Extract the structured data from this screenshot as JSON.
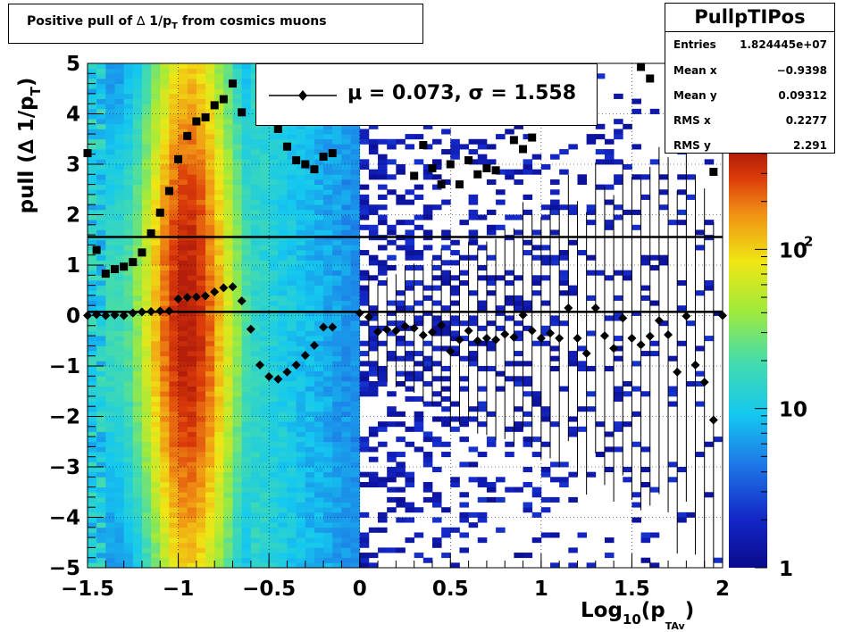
{
  "title_box": {
    "prefix": "Positive pull of ",
    "delta": "∆",
    " middle": "",
    "mid": " 1/p",
    "sub": "T",
    "suffix": " from cosmics muons"
  },
  "stats": {
    "name": "PullpTIPos",
    "rows": [
      {
        "label": "Entries",
        "value": "1.824445e+07"
      },
      {
        "label": "Mean x",
        "value": "−0.9398"
      },
      {
        "label": "Mean y",
        "value": "0.09312"
      },
      {
        "label": "RMS x",
        "value": "0.2277"
      },
      {
        "label": "RMS y",
        "value": "2.291"
      }
    ]
  },
  "legend": {
    "mu_label": "μ =  0.073, σ =   1.558"
  },
  "axes": {
    "ylabel_main": "pull (∆ 1/p",
    "ylabel_sub": "T",
    "ylabel_end": ")",
    "xlabel_main": "Log",
    "xlabel_sub1": "10",
    "xlabel_mid": "(p",
    "xlabel_sub2": "TAv",
    "xlabel_end": ")"
  },
  "chart_data": {
    "type": "heatmap",
    "xlim": [
      -1.5,
      2
    ],
    "ylim": [
      -5,
      5
    ],
    "x_ticks": [
      -1.5,
      -1,
      -0.5,
      0,
      0.5,
      1,
      1.5,
      2
    ],
    "x_tick_labels": [
      "−1.5",
      "−1",
      "−0.5",
      "0",
      "0.5",
      "1",
      "1.5",
      "2"
    ],
    "y_ticks": [
      -5,
      -4,
      -3,
      -2,
      -1,
      0,
      1,
      2,
      3,
      4,
      5
    ],
    "y_tick_labels": [
      "−5",
      "−4",
      "−3",
      "−2",
      "−1",
      "0",
      "1",
      "2",
      "3",
      "4",
      "5"
    ],
    "grid": true,
    "z_scale": "log",
    "z_range": [
      1,
      400
    ],
    "z_ticks": [
      1,
      10,
      100
    ],
    "z_tick_labels": [
      "1",
      "10",
      "10^2"
    ],
    "hlines": [
      1.558,
      0.073
    ],
    "series": [
      {
        "name": "mean",
        "marker": "diamond",
        "points": [
          [
            -1.5,
            0.0
          ],
          [
            -1.45,
            0.02
          ],
          [
            -1.4,
            0.0
          ],
          [
            -1.35,
            0.01
          ],
          [
            -1.3,
            0.0
          ],
          [
            -1.25,
            0.05
          ],
          [
            -1.2,
            0.07
          ],
          [
            -1.15,
            0.08
          ],
          [
            -1.1,
            0.09
          ],
          [
            -1.05,
            0.09
          ],
          [
            -1.0,
            0.33
          ],
          [
            -0.95,
            0.36
          ],
          [
            -0.9,
            0.37
          ],
          [
            -0.85,
            0.39
          ],
          [
            -0.8,
            0.47
          ],
          [
            -0.75,
            0.55
          ],
          [
            -0.7,
            0.57
          ],
          [
            -0.65,
            0.29
          ],
          [
            -0.6,
            -0.27
          ],
          [
            -0.55,
            -0.98
          ],
          [
            -0.5,
            -1.21
          ],
          [
            -0.45,
            -1.26
          ],
          [
            -0.4,
            -1.12
          ],
          [
            -0.35,
            -0.98
          ],
          [
            -0.3,
            -0.79
          ],
          [
            -0.25,
            -0.59
          ],
          [
            -0.2,
            -0.23
          ],
          [
            -0.15,
            -0.23
          ],
          [
            0.0,
            0.05
          ],
          [
            0.05,
            -0.03
          ],
          [
            0.1,
            -0.32
          ],
          [
            0.15,
            -0.28
          ],
          [
            0.2,
            -0.3
          ],
          [
            0.25,
            -0.21
          ],
          [
            0.3,
            -0.25
          ],
          [
            0.35,
            -0.39
          ],
          [
            0.4,
            -0.33
          ],
          [
            0.45,
            -0.19
          ],
          [
            0.5,
            -0.71
          ],
          [
            0.55,
            -0.48
          ],
          [
            0.6,
            -0.3
          ],
          [
            0.65,
            -0.5
          ],
          [
            0.7,
            -0.45
          ],
          [
            0.75,
            -0.48
          ],
          [
            0.8,
            -0.37
          ],
          [
            0.85,
            -0.43
          ],
          [
            0.9,
            0.01
          ],
          [
            0.95,
            -0.3
          ],
          [
            1.0,
            -0.45
          ],
          [
            1.05,
            -0.35
          ],
          [
            1.1,
            -0.45
          ],
          [
            1.15,
            0.15
          ],
          [
            1.2,
            -0.45
          ],
          [
            1.25,
            -0.75
          ],
          [
            1.3,
            0.15
          ],
          [
            1.35,
            -0.4
          ],
          [
            1.4,
            -0.65
          ],
          [
            1.45,
            -0.05
          ],
          [
            1.5,
            -0.45
          ],
          [
            1.55,
            -0.58
          ],
          [
            1.6,
            -0.41
          ],
          [
            1.65,
            -0.1
          ],
          [
            1.7,
            -0.38
          ],
          [
            1.75,
            -1.12
          ],
          [
            1.8,
            -0.01
          ],
          [
            1.85,
            -0.98
          ],
          [
            1.9,
            -1.32
          ],
          [
            1.95,
            -2.07
          ],
          [
            2.0,
            0.0
          ]
        ]
      },
      {
        "name": "rms",
        "marker": "square",
        "points": [
          [
            -1.5,
            3.22
          ],
          [
            -1.45,
            1.3
          ],
          [
            -1.4,
            0.83
          ],
          [
            -1.35,
            0.92
          ],
          [
            -1.3,
            0.97
          ],
          [
            -1.25,
            1.06
          ],
          [
            -1.2,
            1.25
          ],
          [
            -1.15,
            1.63
          ],
          [
            -1.1,
            2.04
          ],
          [
            -1.05,
            2.47
          ],
          [
            -1.0,
            3.1
          ],
          [
            -0.95,
            3.56
          ],
          [
            -0.9,
            3.85
          ],
          [
            -0.85,
            3.93
          ],
          [
            -0.8,
            4.17
          ],
          [
            -0.75,
            4.29
          ],
          [
            -0.7,
            4.6
          ],
          [
            -0.65,
            4.03
          ],
          [
            -0.45,
            3.7
          ],
          [
            -0.4,
            3.35
          ],
          [
            -0.35,
            3.08
          ],
          [
            -0.3,
            3.0
          ],
          [
            -0.25,
            2.9
          ],
          [
            -0.2,
            3.15
          ],
          [
            -0.15,
            3.22
          ],
          [
            0.3,
            2.77
          ],
          [
            0.35,
            3.38
          ],
          [
            0.4,
            2.92
          ],
          [
            0.45,
            2.6
          ],
          [
            0.5,
            3.0
          ],
          [
            0.55,
            2.6
          ],
          [
            0.6,
            3.08
          ],
          [
            0.65,
            2.8
          ],
          [
            0.7,
            2.92
          ],
          [
            0.75,
            2.88
          ],
          [
            0.85,
            3.48
          ],
          [
            0.9,
            3.3
          ],
          [
            0.95,
            3.53
          ],
          [
            1.55,
            4.93
          ],
          [
            1.6,
            4.7
          ],
          [
            1.95,
            2.85
          ]
        ]
      }
    ]
  }
}
